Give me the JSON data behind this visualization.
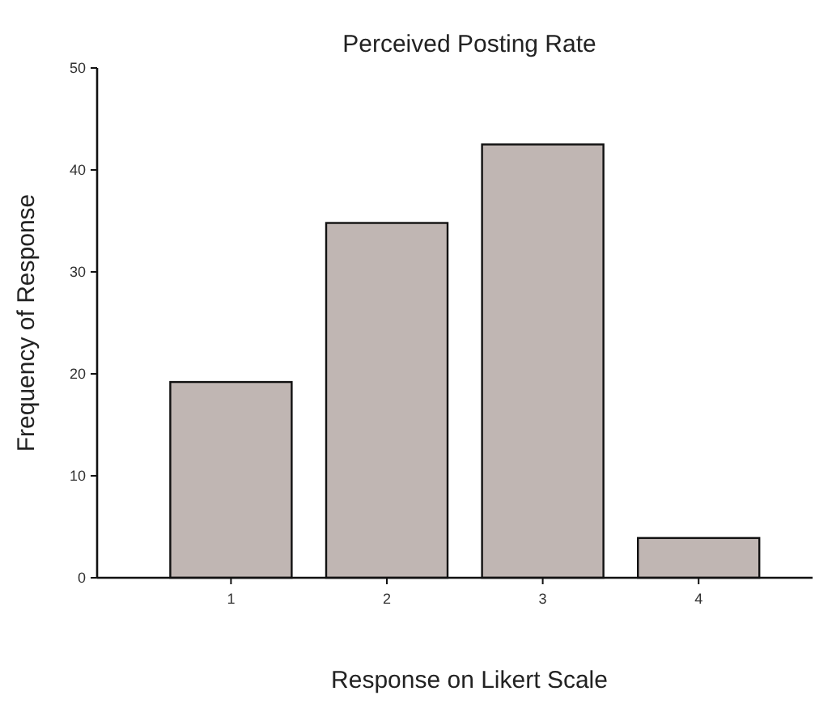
{
  "chart_data": {
    "type": "bar",
    "title": "Perceived Posting Rate",
    "xlabel": "Response on Likert Scale",
    "ylabel": "Frequency of Response",
    "categories": [
      "1",
      "2",
      "3",
      "4"
    ],
    "values": [
      19.2,
      34.8,
      42.5,
      3.9
    ],
    "color": "#c0b6b3",
    "ylim": [
      0,
      50
    ],
    "yticks": [
      0,
      10,
      20,
      30,
      40,
      50
    ],
    "grid": false
  }
}
